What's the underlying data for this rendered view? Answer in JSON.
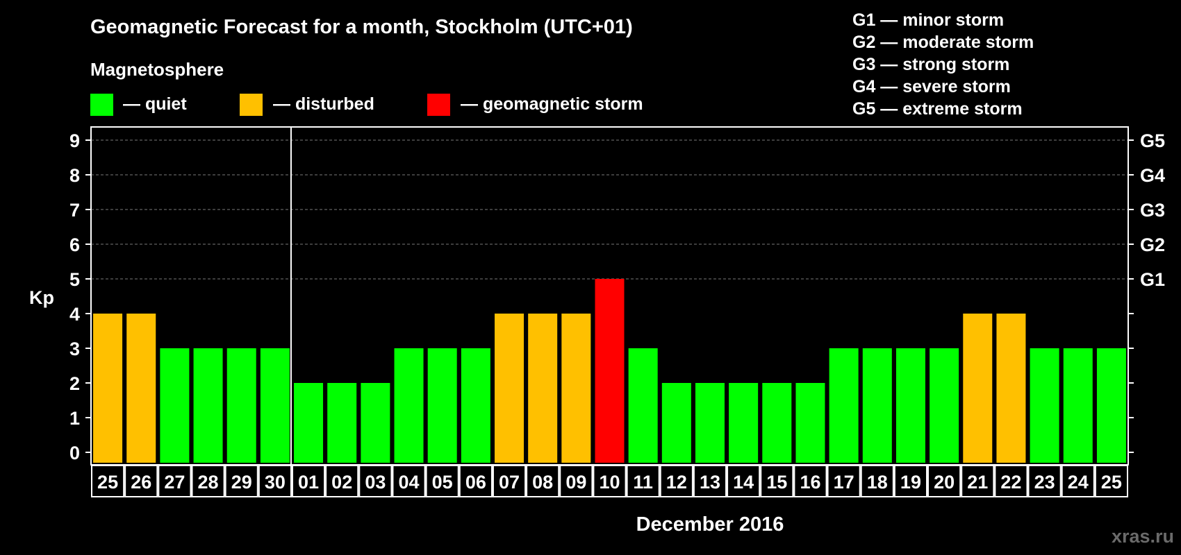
{
  "chart_data": {
    "type": "bar",
    "title": "Geomagnetic Forecast for a month, Stockholm (UTC+01)",
    "section_label": "Magnetosphere",
    "legend": [
      {
        "label": "— quiet",
        "color": "#00ff00"
      },
      {
        "label": "— disturbed",
        "color": "#ffc000"
      },
      {
        "label": "— geomagnetic storm",
        "color": "#ff0000"
      }
    ],
    "storm_scale": [
      "G1 — minor storm",
      "G2 — moderate storm",
      "G3 — strong storm",
      "G4 — severe storm",
      "G5 — extreme storm"
    ],
    "ylabel": "Kp",
    "ylim": [
      0,
      9
    ],
    "yticks": [
      "0",
      "1",
      "2",
      "3",
      "4",
      "5",
      "6",
      "7",
      "8",
      "9"
    ],
    "right_labels": [
      {
        "kp": 5,
        "label": "G1"
      },
      {
        "kp": 6,
        "label": "G2"
      },
      {
        "kp": 7,
        "label": "G3"
      },
      {
        "kp": 8,
        "label": "G4"
      },
      {
        "kp": 9,
        "label": "G5"
      }
    ],
    "gridlines_at": [
      5,
      6,
      7,
      8,
      9
    ],
    "month_divider_after_index": 5,
    "xlabel": "December 2016",
    "categories": [
      "25",
      "26",
      "27",
      "28",
      "29",
      "30",
      "01",
      "02",
      "03",
      "04",
      "05",
      "06",
      "07",
      "08",
      "09",
      "10",
      "11",
      "12",
      "13",
      "14",
      "15",
      "16",
      "17",
      "18",
      "19",
      "20",
      "21",
      "22",
      "23",
      "24",
      "25"
    ],
    "values": [
      4,
      4,
      3,
      3,
      3,
      3,
      2,
      2,
      2,
      3,
      3,
      3,
      4,
      4,
      4,
      5,
      3,
      2,
      2,
      2,
      2,
      2,
      3,
      3,
      3,
      3,
      4,
      4,
      3,
      3,
      3
    ],
    "status": [
      "disturbed",
      "disturbed",
      "quiet",
      "quiet",
      "quiet",
      "quiet",
      "quiet",
      "quiet",
      "quiet",
      "quiet",
      "quiet",
      "quiet",
      "disturbed",
      "disturbed",
      "disturbed",
      "storm",
      "quiet",
      "quiet",
      "quiet",
      "quiet",
      "quiet",
      "quiet",
      "quiet",
      "quiet",
      "quiet",
      "quiet",
      "disturbed",
      "disturbed",
      "quiet",
      "quiet",
      "quiet"
    ],
    "colors": {
      "quiet": "#00ff00",
      "disturbed": "#ffc000",
      "storm": "#ff0000"
    }
  },
  "watermark": "xras.ru"
}
